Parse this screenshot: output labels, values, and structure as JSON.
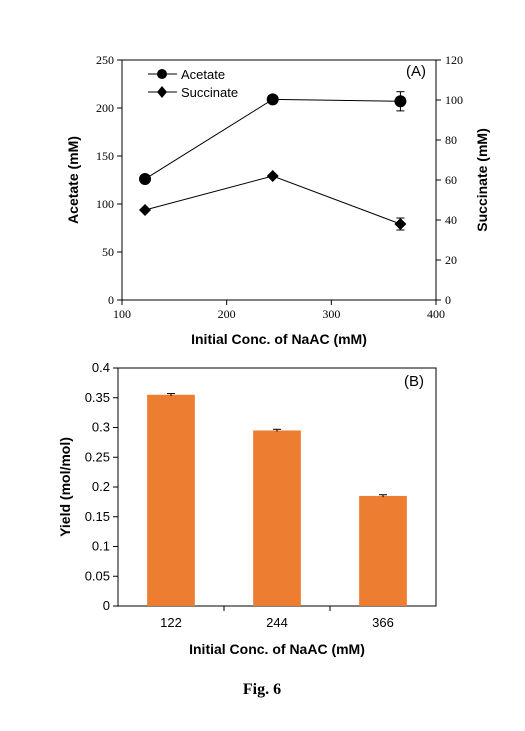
{
  "caption": "Fig. 6",
  "chart_data": [
    {
      "panel_label": "(A)",
      "type": "line",
      "xlabel": "Initial Conc. of NaAC (mM)",
      "ylabel": "Acetate (mM)",
      "y2label": "Succinate (mM)",
      "xlim": [
        100,
        400
      ],
      "ylim": [
        0,
        250
      ],
      "y2lim": [
        0,
        120
      ],
      "xticks": [
        "100",
        "200",
        "300",
        "400"
      ],
      "yticks": [
        "0",
        "50",
        "100",
        "150",
        "200",
        "250"
      ],
      "y2ticks": [
        "0",
        "20",
        "40",
        "60",
        "80",
        "100",
        "120"
      ],
      "legend_position": "top-left",
      "series": [
        {
          "name": "Acetate",
          "axis": "left",
          "marker": "circle",
          "x": [
            122,
            244,
            366
          ],
          "y": [
            126,
            209,
            207
          ],
          "err": [
            0,
            0,
            10
          ]
        },
        {
          "name": "Succinate",
          "axis": "right",
          "marker": "diamond",
          "x": [
            122,
            244,
            366
          ],
          "y": [
            45,
            62,
            38
          ],
          "err": [
            0,
            0,
            3
          ]
        }
      ]
    },
    {
      "panel_label": "(B)",
      "type": "bar",
      "xlabel": "Initial Conc. of NaAC (mM)",
      "ylabel": "Yield (mol/mol)",
      "ylim": [
        0,
        0.4
      ],
      "yticks": [
        "0",
        "0.05",
        "0.1",
        "0.15",
        "0.2",
        "0.25",
        "0.3",
        "0.35",
        "0.4"
      ],
      "categories": [
        "122",
        "244",
        "366"
      ],
      "values": [
        0.355,
        0.295,
        0.185
      ],
      "err": [
        0.002,
        0.002,
        0.002
      ],
      "bar_color": "#ED7D31"
    }
  ]
}
